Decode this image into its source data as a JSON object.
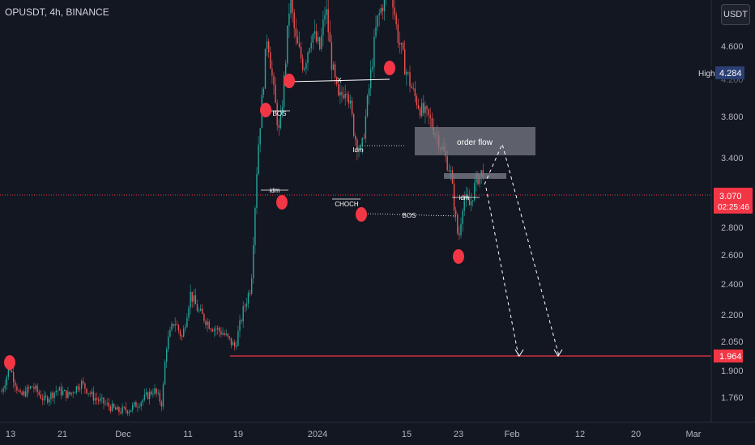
{
  "header": {
    "title": "OPUSDT, 4h, BINANCE",
    "currency_button": "USDT"
  },
  "colors": {
    "background": "#131722",
    "up": "#26a69a",
    "down": "#ef5350",
    "pivot": "#f23645",
    "line": "#ffffff",
    "order_flow_box": "#787b86",
    "support": "#f23645"
  },
  "chart_data": {
    "type": "candlestick",
    "symbol": "OPUSDT",
    "interval": "4h",
    "exchange": "BINANCE",
    "y_ticks": [
      "4.600",
      "4.200",
      "3.800",
      "3.400",
      "3.070",
      "2.800",
      "2.600",
      "2.400",
      "2.200",
      "2.050",
      "1.900",
      "1.760"
    ],
    "x_ticks": [
      "13",
      "21",
      "Dec",
      "11",
      "19",
      "2024",
      "15",
      "23",
      "Feb",
      "12",
      "20",
      "Mar"
    ],
    "price_labels": {
      "high_label": "High",
      "high_value": "4.284",
      "current_price": "3.070",
      "countdown": "02:25:46",
      "support_price": "1.964"
    },
    "annotations": {
      "bos_1": "BOS",
      "x_label": "X",
      "idm_1": "idm",
      "idm_2": "Idm",
      "choch": "CHOCH",
      "bos_2": "BOS",
      "idm_3": "idm",
      "order_flow": "order flow"
    },
    "support_level": 1.964,
    "order_flow_zone": [
      3.38,
      3.62
    ]
  }
}
